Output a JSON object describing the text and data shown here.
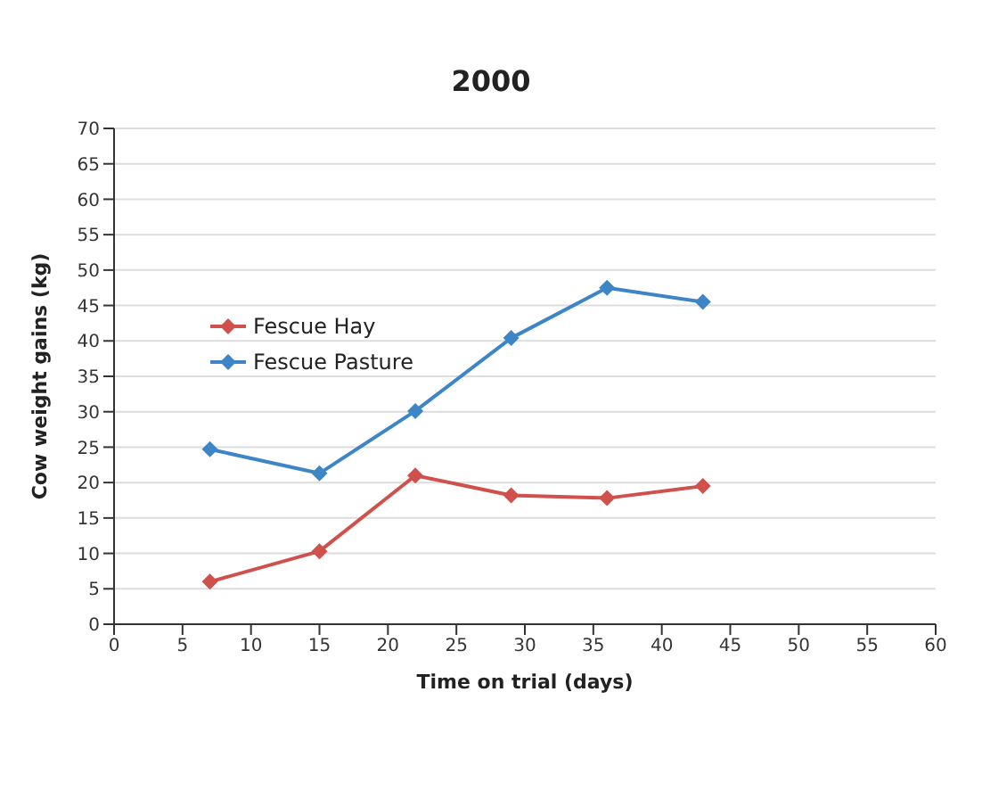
{
  "chart_data": {
    "type": "line",
    "title": "2000",
    "xlabel": "Time on trial (days)",
    "ylabel": "Cow weight gains (kg)",
    "x": [
      7,
      15,
      22,
      29,
      36,
      43
    ],
    "series": [
      {
        "name": "Fescue Hay",
        "color": "#d0504c",
        "values": [
          6,
          10.3,
          21,
          18.2,
          17.8,
          19.5
        ]
      },
      {
        "name": "Fescue Pasture",
        "color": "#3d85c6",
        "values": [
          24.7,
          21.3,
          30.1,
          40.4,
          47.5,
          45.5
        ]
      }
    ],
    "xlim": [
      0,
      60
    ],
    "xticks": [
      0,
      5,
      10,
      15,
      20,
      25,
      30,
      35,
      40,
      45,
      50,
      55,
      60
    ],
    "ylim": [
      0,
      70
    ],
    "yticks": [
      0,
      5,
      10,
      15,
      20,
      25,
      30,
      35,
      40,
      45,
      50,
      55,
      60,
      65,
      70
    ],
    "grid": "y",
    "legend": "top left",
    "marker": "diamond",
    "line_style": "solid"
  }
}
